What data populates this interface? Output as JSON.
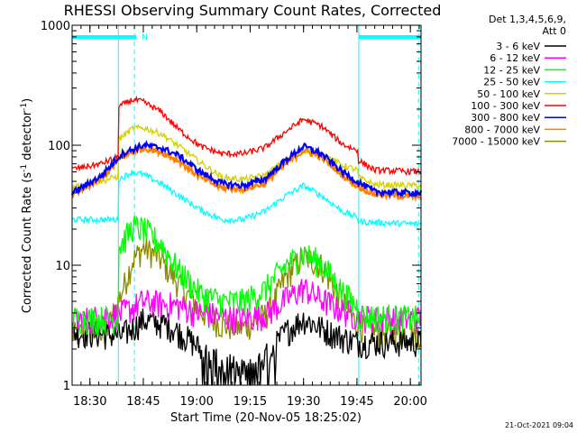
{
  "chart_data": {
    "type": "line",
    "title": "RHESSI Observing Summary Count Rates, Corrected",
    "xlabel": "Start Time (20-Nov-05 18:25:02)",
    "ylabel": "Corrected Count Rate (s⁻¹ detector⁻¹)",
    "ylabel_main": "Corrected Count Rate (s",
    "ylabel_sup1": "-1",
    "ylabel_mid": " detector",
    "ylabel_sup2": "-1",
    "ylabel_end": ")",
    "yscale": "log",
    "ylim": [
      1,
      1000
    ],
    "xlim_minutes": [
      0,
      98
    ],
    "x_ticks": [
      {
        "minutes": 5,
        "label": "18:30"
      },
      {
        "minutes": 20,
        "label": "18:45"
      },
      {
        "minutes": 35,
        "label": "19:00"
      },
      {
        "minutes": 50,
        "label": "19:15"
      },
      {
        "minutes": 65,
        "label": "19:30"
      },
      {
        "minutes": 80,
        "label": "19:45"
      },
      {
        "minutes": 95,
        "label": "20:00"
      }
    ],
    "y_ticks": [
      {
        "value": 1,
        "label": "1"
      },
      {
        "value": 10,
        "label": "10"
      },
      {
        "value": 100,
        "label": "100"
      },
      {
        "value": 1000,
        "label": "1000"
      }
    ],
    "legend_header": [
      "Det 1,3,4,5,6,9,",
      "Att 0"
    ],
    "series": [
      {
        "name": "3 - 6 keV",
        "color": "#000000",
        "anchors_minutes": [
          0,
          14,
          20,
          27,
          33,
          40,
          48,
          55,
          60,
          65,
          70,
          76,
          80,
          85,
          98
        ],
        "anchors_values": [
          2.8,
          2.6,
          3.5,
          3.2,
          2.4,
          1.6,
          1.3,
          1.8,
          2.8,
          3.6,
          3.0,
          2.5,
          2.3,
          2.3,
          2.3
        ]
      },
      {
        "name": "6 - 12 keV",
        "color": "#ff00ff",
        "anchors_minutes": [
          0,
          14,
          20,
          30,
          36,
          48,
          55,
          60,
          65,
          70,
          76,
          80,
          85,
          98
        ],
        "anchors_values": [
          3.4,
          4.0,
          5.0,
          4.6,
          4.0,
          3.6,
          4.0,
          5.2,
          6.5,
          5.2,
          4.2,
          3.8,
          3.6,
          3.6
        ]
      },
      {
        "name": "12 - 25 keV",
        "color": "#00ff00",
        "anchors_minutes": [
          0,
          12.9,
          13.1,
          17,
          20,
          25,
          30,
          36,
          42,
          48,
          54,
          60,
          65,
          70,
          76,
          80.2,
          80.4,
          98
        ],
        "anchors_values": [
          3.6,
          3.6,
          14,
          21,
          20,
          15,
          9,
          5.8,
          5.0,
          5.0,
          6.2,
          10,
          12.5,
          10.5,
          6.0,
          4.5,
          3.8,
          3.6
        ]
      },
      {
        "name": "25 - 50 keV",
        "color": "#00ffff",
        "anchors_minutes": [
          0,
          12.9,
          13.1,
          17,
          20,
          25,
          30,
          36,
          42,
          48,
          54,
          60,
          65,
          70,
          76,
          80.2,
          80.4,
          98
        ],
        "anchors_values": [
          24,
          24,
          52,
          60,
          57,
          48,
          38,
          29,
          24,
          24,
          28,
          38,
          46,
          38,
          28,
          25,
          23,
          22
        ]
      },
      {
        "name": "50 - 100 keV",
        "color": "#d2d200",
        "anchors_minutes": [
          0,
          8,
          12.9,
          13.1,
          17,
          20,
          25,
          30,
          36,
          42,
          48,
          54,
          60,
          65,
          70,
          76,
          80.2,
          80.4,
          85,
          98
        ],
        "anchors_values": [
          45,
          50,
          55,
          112,
          138,
          140,
          125,
          98,
          72,
          54,
          52,
          56,
          75,
          92,
          85,
          68,
          62,
          54,
          47,
          46
        ]
      },
      {
        "name": "100 - 300 keV",
        "color": "#ff0000",
        "anchors_minutes": [
          0,
          8,
          12.9,
          13.1,
          17,
          20,
          25,
          30,
          36,
          42,
          48,
          54,
          60,
          65,
          70,
          76,
          80.2,
          80.4,
          85,
          98
        ],
        "anchors_values": [
          63,
          70,
          80,
          210,
          240,
          230,
          190,
          135,
          98,
          85,
          85,
          95,
          130,
          165,
          145,
          102,
          90,
          75,
          62,
          60
        ]
      },
      {
        "name": "300 - 800 keV",
        "color": "#0000ff",
        "anchors_minutes": [
          0,
          8,
          14,
          20,
          25,
          30,
          36,
          42,
          48,
          54,
          60,
          65,
          70,
          76,
          80,
          85,
          98
        ],
        "anchors_values": [
          40,
          55,
          85,
          100,
          95,
          82,
          60,
          48,
          46,
          52,
          75,
          98,
          85,
          60,
          50,
          41,
          40
        ]
      },
      {
        "name": "800 - 7000 keV",
        "color": "#ff8000",
        "anchors_minutes": [
          0,
          8,
          14,
          20,
          25,
          30,
          36,
          42,
          48,
          54,
          60,
          65,
          70,
          76,
          80,
          85,
          98
        ],
        "anchors_values": [
          38,
          52,
          80,
          95,
          88,
          74,
          54,
          44,
          43,
          48,
          70,
          90,
          80,
          56,
          46,
          39,
          37
        ]
      },
      {
        "name": "7000 - 15000 keV",
        "color": "#8b8b00",
        "anchors_minutes": [
          0,
          10,
          13,
          17,
          20,
          24,
          30,
          36,
          42,
          48,
          55,
          60,
          65,
          70,
          76,
          80,
          85,
          98
        ],
        "anchors_values": [
          2.6,
          3.0,
          5.0,
          11,
          14,
          12,
          7,
          4.2,
          3.2,
          3.0,
          4.0,
          8,
          12,
          10,
          5,
          3.2,
          2.8,
          2.7
        ]
      }
    ],
    "annotations": [
      {
        "type": "bar",
        "label": "",
        "start_minutes": 0,
        "end_minutes": 18,
        "color": "#00ffff"
      },
      {
        "type": "text",
        "label": "N",
        "at_minutes": 19,
        "color": "#00ffff"
      },
      {
        "type": "bar",
        "label": "",
        "start_minutes": 80.5,
        "end_minutes": 98,
        "color": "#00ffff"
      },
      {
        "type": "vline_solid",
        "at_minutes": [
          0,
          13,
          80.5
        ],
        "color": "#00ffff"
      },
      {
        "type": "vline_dashed",
        "at_minutes": [
          17.5,
          97.3
        ],
        "color": "#00ffff"
      }
    ],
    "timestamp": "21-Oct-2021 09:04"
  }
}
